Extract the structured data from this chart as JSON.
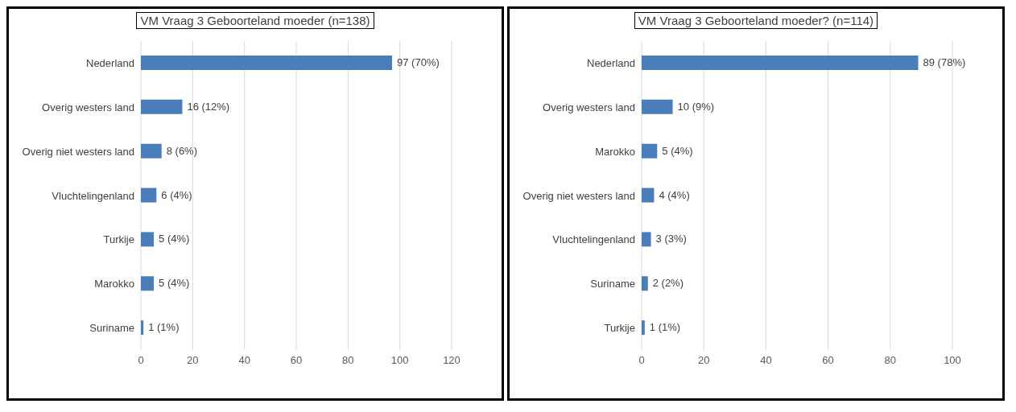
{
  "chart_data": [
    {
      "type": "bar",
      "orientation": "horizontal",
      "title": "VM Vraag 3  Geboorteland moeder (n=138)",
      "categories": [
        "Nederland",
        "Overig westers land",
        "Overig niet westers land",
        "Vluchtelingenland",
        "Turkije",
        "Marokko",
        "Suriname"
      ],
      "values": [
        97,
        16,
        8,
        6,
        5,
        5,
        1
      ],
      "value_labels": [
        "97 (70%)",
        "16 (12%)",
        "8 (6%)",
        "6 (4%)",
        "5 (4%)",
        "5 (4%)",
        "1 (1%)"
      ],
      "color": "#4a7ebb",
      "xlim": [
        0,
        120
      ],
      "xticks": [
        0,
        20,
        40,
        60,
        80,
        100,
        120
      ],
      "grid": "x"
    },
    {
      "type": "bar",
      "orientation": "horizontal",
      "title": "VM Vraag 3 Geboorteland moeder? (n=114)",
      "categories": [
        "Nederland",
        "Overig westers land",
        "Marokko",
        "Overig niet westers land",
        "Vluchtelingenland",
        "Suriname",
        "Turkije"
      ],
      "values": [
        89,
        10,
        5,
        4,
        3,
        2,
        1
      ],
      "value_labels": [
        "89 (78%)",
        "10 (9%)",
        "5 (4%)",
        "4 (4%)",
        "3 (3%)",
        "2 (2%)",
        "1 (1%)"
      ],
      "color": "#4a7ebb",
      "xlim": [
        0,
        100
      ],
      "xticks": [
        0,
        20,
        40,
        60,
        80,
        100
      ],
      "grid": "x"
    }
  ]
}
